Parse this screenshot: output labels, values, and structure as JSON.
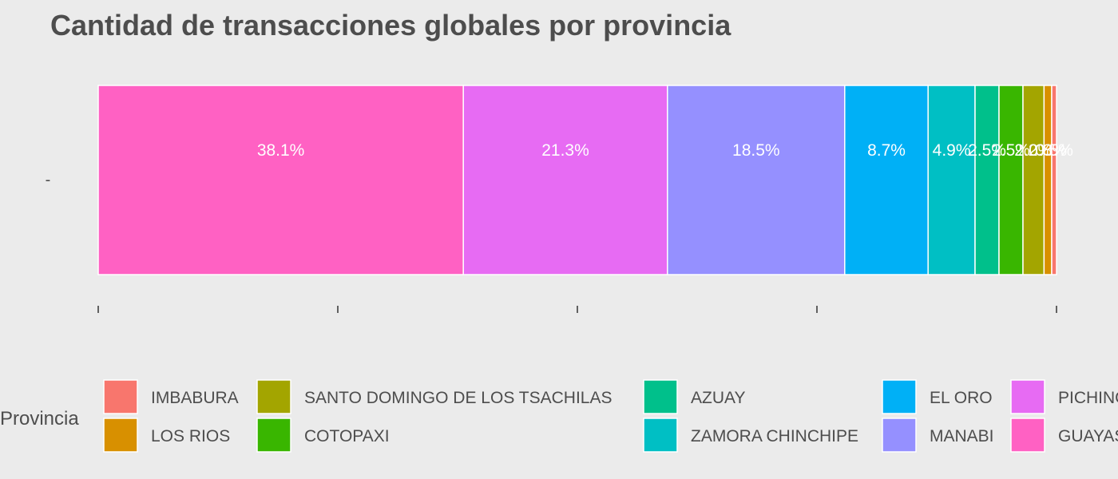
{
  "chart_data": {
    "type": "bar",
    "orientation": "horizontal-stacked-percent",
    "title": "Cantidad de transacciones globales por provincia",
    "xlabel": "",
    "ylabel": "",
    "y_categories": [
      "-"
    ],
    "xlim": [
      0,
      1
    ],
    "x_tick_labels": [],
    "grid": false,
    "legend": {
      "title": "Provincia",
      "position": "bottom",
      "rows": 2
    },
    "series": [
      {
        "name": "GUAYAS",
        "value": 38.1,
        "label": "38.1%",
        "color": "#FF61C3"
      },
      {
        "name": "PICHINCHA",
        "value": 21.3,
        "label": "21.3%",
        "color": "#E76BF3"
      },
      {
        "name": "MANABI",
        "value": 18.5,
        "label": "18.5%",
        "color": "#9590FF"
      },
      {
        "name": "EL ORO",
        "value": 8.7,
        "label": "8.7%",
        "color": "#00B0F6"
      },
      {
        "name": "ZAMORA CHINCHIPE",
        "value": 4.9,
        "label": "4.9%",
        "color": "#00BFC4"
      },
      {
        "name": "AZUAY",
        "value": 2.5,
        "label": "2.5%",
        "color": "#00C08B"
      },
      {
        "name": "COTOPAXI",
        "value": 2.5,
        "label": "2.5%",
        "color": "#39B600"
      },
      {
        "name": "SANTO DOMINGO DE LOS TSACHILAS",
        "value": 2.2,
        "label": "2.2%",
        "color": "#A3A500"
      },
      {
        "name": "LOS RIOS",
        "value": 0.8,
        "label": "0.8%",
        "color": "#D89000"
      },
      {
        "name": "IMBABURA",
        "value": 0.5,
        "label": "0.5%",
        "color": "#F8766D"
      }
    ],
    "legend_order": [
      [
        "IMBABURA",
        "SANTO DOMINGO DE LOS TSACHILAS",
        "AZUAY",
        "EL ORO",
        "PICHINCHA"
      ],
      [
        "LOS RIOS",
        "COTOPAXI",
        "ZAMORA CHINCHIPE",
        "MANABI",
        "GUAYAS"
      ]
    ]
  }
}
